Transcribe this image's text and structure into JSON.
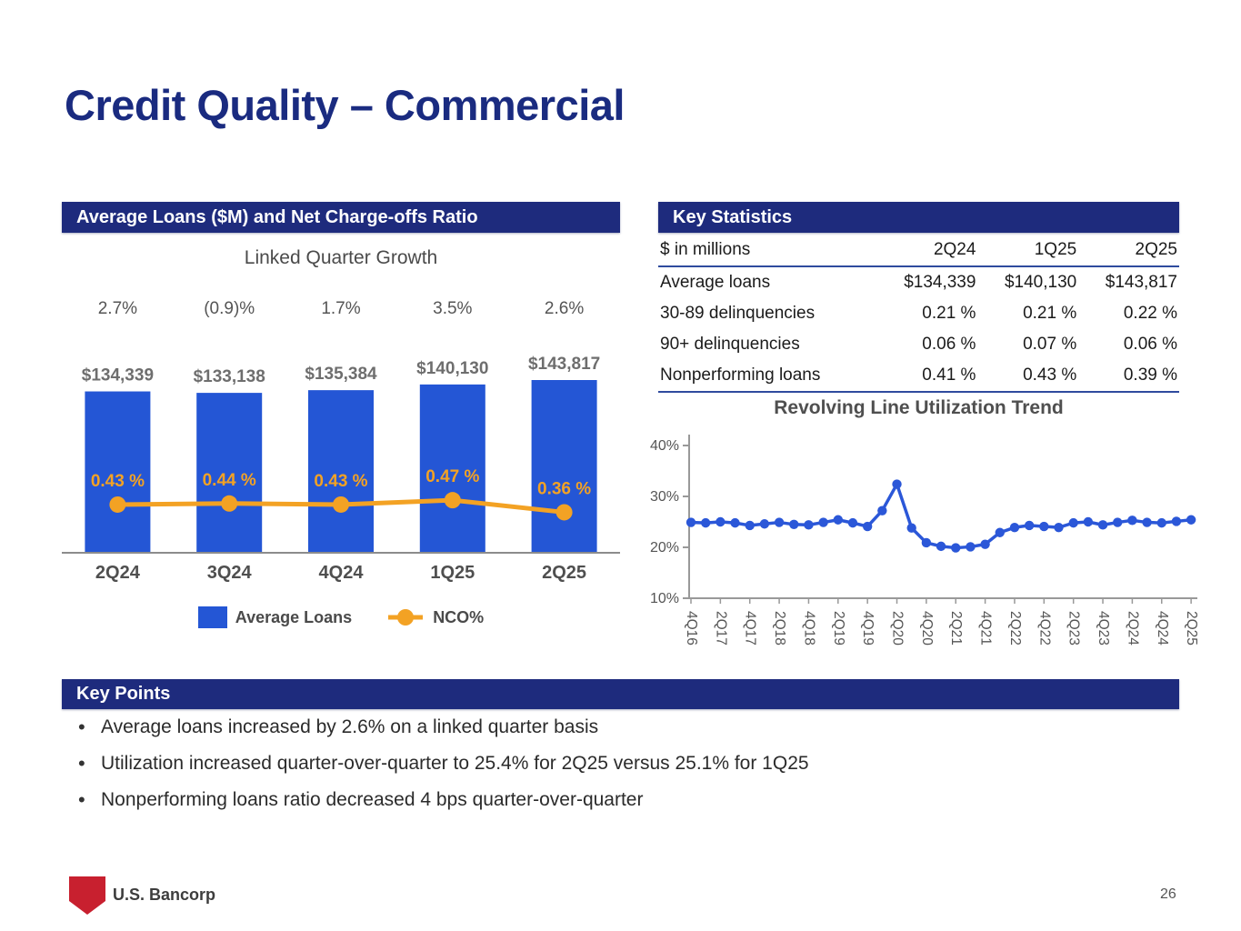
{
  "slide": {
    "title": "Credit Quality – Commercial",
    "page_number": "26",
    "footer_brand": "U.S. Bancorp",
    "colors": {
      "navy": "#1E2B7D",
      "title_navy": "#1A2B80",
      "bar_blue": "#2456D5",
      "line_blue": "#2B57D8",
      "orange": "#F3A224",
      "brand_red": "#C8202F"
    }
  },
  "left_panel": {
    "header": "Average Loans ($M) and Net Charge-offs Ratio",
    "subtitle": "Linked Quarter Growth",
    "legend": [
      {
        "label": "Average Loans"
      },
      {
        "label": "NCO%"
      }
    ]
  },
  "key_statistics": {
    "header": "Key Statistics",
    "columns": [
      "$ in millions",
      "2Q24",
      "1Q25",
      "2Q25"
    ],
    "rows": [
      [
        "Average loans",
        "$134,339",
        "$140,130",
        "$143,817"
      ],
      [
        "30-89 delinquencies",
        "0.21 %",
        "0.21 %",
        "0.22 %"
      ],
      [
        "90+ delinquencies",
        "0.06 %",
        "0.07 %",
        "0.06 %"
      ],
      [
        "Nonperforming loans",
        "0.41 %",
        "0.43 %",
        "0.39 %"
      ]
    ]
  },
  "key_points": {
    "header": "Key Points",
    "bullets": [
      "Average loans increased by 2.6% on a linked quarter basis",
      "Utilization increased quarter-over-quarter to 25.4% for 2Q25 versus 25.1% for 1Q25",
      "Nonperforming loans ratio decreased 4 bps quarter-over-quarter"
    ]
  },
  "chart_data": [
    {
      "type": "bar",
      "title": "Linked Quarter Growth",
      "categories": [
        "2Q24",
        "3Q24",
        "4Q24",
        "1Q25",
        "2Q25"
      ],
      "growth_labels": [
        "2.7%",
        "(0.9)%",
        "1.7%",
        "3.5%",
        "2.6%"
      ],
      "series": [
        {
          "name": "Average Loans",
          "type": "bar",
          "values": [
            134339,
            133138,
            135384,
            140130,
            143817
          ],
          "labels": [
            "$134,339",
            "$133,138",
            "$135,384",
            "$140,130",
            "$143,817"
          ]
        },
        {
          "name": "NCO%",
          "type": "line",
          "values": [
            0.43,
            0.44,
            0.43,
            0.47,
            0.36
          ],
          "labels": [
            "0.43 %",
            "0.44 %",
            "0.43 %",
            "0.47 %",
            "0.36 %"
          ]
        }
      ],
      "legend_position": "bottom"
    },
    {
      "type": "line",
      "title": "Revolving Line Utilization Trend",
      "x": [
        "4Q16",
        "1Q17",
        "2Q17",
        "3Q17",
        "4Q17",
        "1Q18",
        "2Q18",
        "3Q18",
        "4Q18",
        "1Q19",
        "2Q19",
        "3Q19",
        "4Q19",
        "1Q20",
        "2Q20",
        "3Q20",
        "4Q20",
        "1Q21",
        "2Q21",
        "3Q21",
        "4Q21",
        "1Q22",
        "2Q22",
        "3Q22",
        "4Q22",
        "1Q23",
        "2Q23",
        "3Q23",
        "4Q23",
        "1Q24",
        "2Q24",
        "3Q24",
        "4Q24",
        "1Q25",
        "2Q25"
      ],
      "values": [
        24.9,
        24.8,
        25.0,
        24.8,
        24.3,
        24.6,
        24.9,
        24.5,
        24.4,
        24.9,
        25.4,
        24.8,
        24.1,
        27.2,
        32.4,
        23.8,
        20.9,
        20.2,
        19.9,
        20.1,
        20.6,
        22.9,
        23.9,
        24.3,
        24.1,
        23.9,
        24.8,
        25.0,
        24.4,
        24.9,
        25.3,
        24.9,
        24.8,
        25.1,
        25.4
      ],
      "tick_labels": [
        "4Q16",
        "2Q17",
        "4Q17",
        "2Q18",
        "4Q18",
        "2Q19",
        "4Q19",
        "2Q20",
        "4Q20",
        "2Q21",
        "4Q21",
        "2Q22",
        "4Q22",
        "2Q23",
        "4Q23",
        "2Q24",
        "4Q24",
        "2Q25"
      ],
      "yticks": [
        "40%",
        "30%",
        "20%",
        "10%"
      ],
      "ytick_values": [
        40,
        30,
        20,
        10
      ],
      "ylim": [
        10,
        40
      ],
      "grid": false,
      "legend_position": "none"
    }
  ]
}
